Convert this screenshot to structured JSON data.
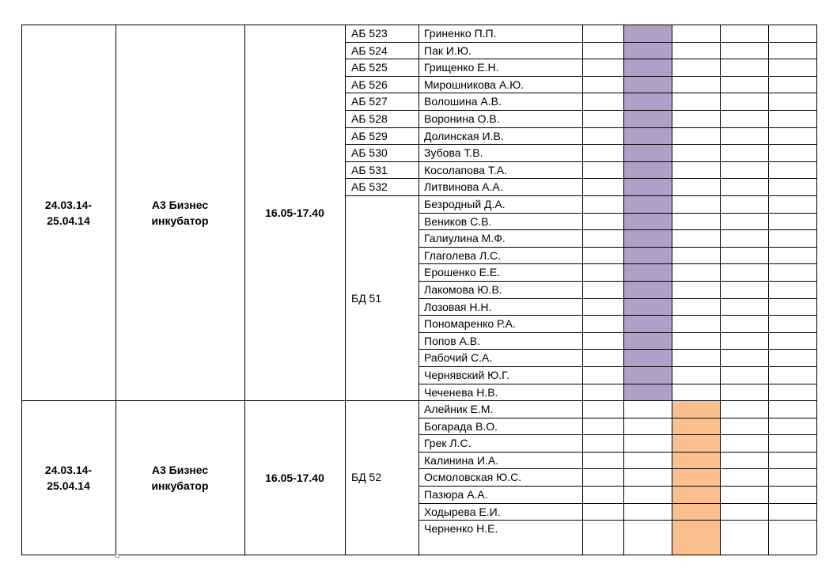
{
  "blocks": [
    {
      "dates": [
        "24.03.14-",
        "25.04.14"
      ],
      "place": [
        "А3 Бизнес",
        "инкубатор"
      ],
      "time": "16.05-17.40",
      "highlight": "purple",
      "groups": [
        {
          "label": "АБ 523",
          "names": [
            "Гриненко П.П."
          ]
        },
        {
          "label": "АБ 524",
          "names": [
            "Пак И.Ю."
          ]
        },
        {
          "label": "АБ 525",
          "names": [
            "Грищенко Е.Н."
          ]
        },
        {
          "label": "АБ 526",
          "names": [
            "Мирошникова А.Ю."
          ]
        },
        {
          "label": "АБ 527",
          "names": [
            "Волошина А.В."
          ]
        },
        {
          "label": "АБ 528",
          "names": [
            "Воронина О.В."
          ]
        },
        {
          "label": "АБ 529",
          "names": [
            "Долинская И.В."
          ]
        },
        {
          "label": "АБ 530",
          "names": [
            "Зубова Т.В."
          ]
        },
        {
          "label": "АБ 531",
          "names": [
            "Косолапова Т.А."
          ]
        },
        {
          "label": "АБ 532",
          "names": [
            "Литвинова А.А."
          ]
        },
        {
          "label": "БД 51",
          "names": [
            "Безродный Д.А.",
            "Веников С.В.",
            "Галиулина М.Ф.",
            "Глаголева Л.С.",
            "Ерошенко Е.Е.",
            "Лакомова Ю.В.",
            "Лозовая Н.Н.",
            "Пономаренко Р.А.",
            "Попов А.В.",
            "Рабочий  С.А.",
            "Чернявский Ю.Г.",
            "Чеченева Н.В."
          ]
        }
      ]
    },
    {
      "dates": [
        "24.03.14-",
        "25.04.14"
      ],
      "place": [
        "А3 Бизнес",
        "инкубатор"
      ],
      "time": "16.05-17.40",
      "highlight": "orange",
      "groups": [
        {
          "label": "БД 52",
          "names": [
            "Алейник Е.М.",
            "Богарада В.О.",
            "Грек Л.С.",
            "Калинина И.А.",
            "Осмоловская Ю.С.",
            "Пазюра А.А.",
            "Ходырева Е.И.",
            "Черненко Н.Е."
          ]
        }
      ]
    }
  ],
  "colors": {
    "purple": "#b0a0c8",
    "orange": "#fbbf8e",
    "grid": "#000000"
  }
}
